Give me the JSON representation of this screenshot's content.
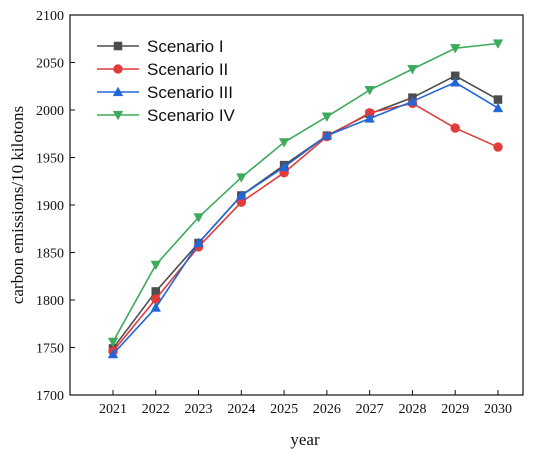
{
  "chart_data": {
    "type": "line",
    "xlabel": "year",
    "ylabel": "carbon emissions/10 kilotons",
    "x": [
      2021,
      2022,
      2023,
      2024,
      2025,
      2026,
      2027,
      2028,
      2029,
      2030
    ],
    "xticks": [
      "2021",
      "2022",
      "2023",
      "2024",
      "2025",
      "2026",
      "2027",
      "2028",
      "2029",
      "2030"
    ],
    "ylim": [
      1700,
      2100
    ],
    "yticks": [
      "1700",
      "1750",
      "1800",
      "1850",
      "1900",
      "1950",
      "2000",
      "2050",
      "2100"
    ],
    "grid": false,
    "legend_position": "top-left",
    "series": [
      {
        "name": "Scenario I",
        "color": "#4d4d4d",
        "marker": "square",
        "values": [
          1749,
          1809,
          1860,
          1910,
          1942,
          1973,
          1996,
          2013,
          2036,
          2011
        ]
      },
      {
        "name": "Scenario II",
        "color": "#e03c3c",
        "marker": "circle",
        "values": [
          1746,
          1801,
          1856,
          1903,
          1934,
          1972,
          1997,
          2007,
          1981,
          1961
        ]
      },
      {
        "name": "Scenario III",
        "color": "#2266d8",
        "marker": "triangle-up",
        "values": [
          1743,
          1792,
          1860,
          1910,
          1940,
          1973,
          1991,
          2009,
          2029,
          2002
        ]
      },
      {
        "name": "Scenario IV",
        "color": "#3daa5c",
        "marker": "triangle-down",
        "values": [
          1756,
          1837,
          1887,
          1929,
          1966,
          1993,
          2021,
          2043,
          2065,
          2070
        ]
      }
    ]
  }
}
